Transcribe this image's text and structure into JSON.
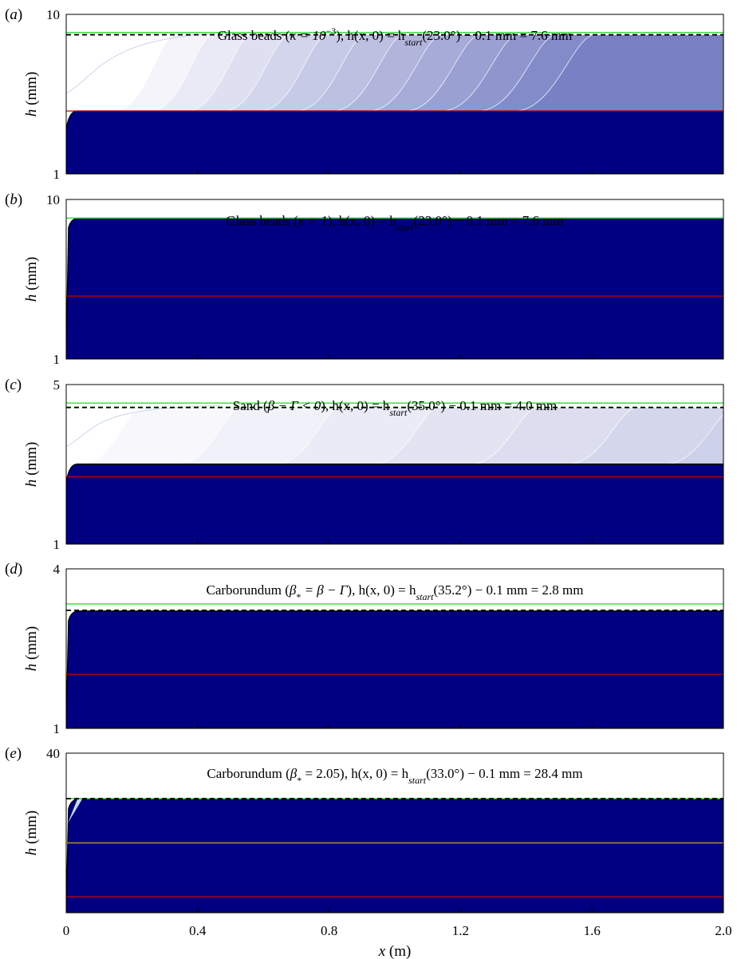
{
  "figure": {
    "xlabel_var": "x",
    "xlabel_unit": "(m)",
    "x_ticks": [
      "0",
      "0.4",
      "0.8",
      "1.2",
      "1.6",
      "2.0"
    ]
  },
  "chart_data": [
    {
      "type": "area",
      "panel": "(a)",
      "title": {
        "prefix": "Glass beads (",
        "param": "κ = 10",
        "param_sup": "−3",
        "suffix": "), h(x, 0) = h",
        "sub": "start",
        "tail": "(23.0°) − 0.1 mm = 7.6 mm"
      },
      "ylabel_var": "h",
      "ylabel_unit": "(mm)",
      "y_tick_labels": [
        "1",
        "10"
      ],
      "xlim": [
        0,
        2.0
      ],
      "ylim": [
        1,
        10
      ],
      "y_scale": "log",
      "front": "wide",
      "lines": {
        "green_mm": 7.7,
        "dashed_mm": 7.45,
        "red_mm": 2.48,
        "orange_mm": null
      },
      "contour": {
        "n_layers": 12,
        "tint_strength": 0.85,
        "first_front_x": 0.3,
        "front_step": 0.115,
        "final_h_mm": 2.48
      },
      "colors": {
        "fill": "#000080",
        "green": "#33dd33",
        "red": "#cc0000",
        "orange": "#d4a020",
        "dashed": "#000000"
      }
    },
    {
      "type": "area",
      "panel": "(b)",
      "title": {
        "prefix": "Glass beads (",
        "param": "κ = 1",
        "param_sup": "",
        "suffix": "), h(x, 0) = h",
        "sub": "start",
        "tail": "(23.0°) − 0.1 mm = 7.6 mm"
      },
      "ylabel_var": "h",
      "ylabel_unit": "(mm)",
      "y_tick_labels": [
        "1",
        "10"
      ],
      "xlim": [
        0,
        2.0
      ],
      "ylim": [
        1,
        10
      ],
      "y_scale": "log",
      "front": "steep",
      "lines": {
        "green_mm": 7.65,
        "dashed_mm": null,
        "red_mm": 2.48,
        "orange_mm": null
      },
      "contour": null,
      "colors": {
        "fill": "#000080",
        "green": "#33dd33",
        "red": "#cc0000",
        "orange": "#d4a020",
        "dashed": "#000000"
      }
    },
    {
      "type": "area",
      "panel": "(c)",
      "title": {
        "prefix": "Sand (",
        "param": "β − Γ < 0",
        "param_sup": "",
        "suffix": "), h(x, 0) = h",
        "sub": "start",
        "tail": "(35.0°) − 0.1 mm = 4.0 mm"
      },
      "ylabel_var": "h",
      "ylabel_unit": "(mm)",
      "y_tick_labels": [
        "1",
        "5"
      ],
      "xlim": [
        0,
        2.0
      ],
      "ylim": [
        1,
        5
      ],
      "y_scale": "log",
      "front": "wide",
      "lines": {
        "green_mm": 4.15,
        "dashed_mm": 3.97,
        "red_mm": 1.97,
        "orange_mm": null
      },
      "contour": {
        "n_layers": 10,
        "tint_strength": 0.45,
        "first_front_x": 0.2,
        "front_step": 0.3,
        "final_h_mm": 2.24
      },
      "colors": {
        "fill": "#000080",
        "green": "#33dd33",
        "red": "#cc0000",
        "orange": "#d4a020",
        "dashed": "#000000"
      }
    },
    {
      "type": "area",
      "panel": "(d)",
      "title": {
        "prefix": "Carborundum (",
        "param": "β",
        "param_sub": "*",
        "param_after": " = β − Γ",
        "suffix": "), h(x, 0) = h",
        "sub": "start",
        "tail": "(35.2°) − 0.1 mm = 2.8 mm"
      },
      "ylabel_var": "h",
      "ylabel_unit": "(mm)",
      "y_tick_labels": [
        "1",
        "4"
      ],
      "xlim": [
        0,
        2.0
      ],
      "ylim": [
        1,
        4
      ],
      "y_scale": "log",
      "front": "steep",
      "lines": {
        "green_mm": 2.95,
        "dashed_mm": 2.79,
        "red_mm": 1.6,
        "orange_mm": null
      },
      "contour": null,
      "colors": {
        "fill": "#000080",
        "green": "#33dd33",
        "red": "#cc0000",
        "orange": "#d4a020",
        "dashed": "#000000"
      }
    },
    {
      "type": "area",
      "panel": "(e)",
      "title": {
        "prefix": "Carborundum (",
        "param": "β",
        "param_sub": "*",
        "param_after": " = 2.05",
        "suffix": "), h(x, 0) = h",
        "sub": "start",
        "tail": "(33.0°) − 0.1 mm = 28.4 mm"
      },
      "ylabel_var": "h",
      "ylabel_unit": "(mm)",
      "y_tick_labels": [
        "40"
      ],
      "xlim": [
        0,
        2.0
      ],
      "ylim": [
        0,
        40
      ],
      "y_scale": "linear",
      "front": "steep",
      "lines": {
        "green_mm": 28.6,
        "dashed_mm": 28.6,
        "red_mm": 4.0,
        "orange_mm": 17.5
      },
      "contour": null,
      "colors": {
        "fill": "#000080",
        "green": "#33dd33",
        "red": "#cc0000",
        "orange": "#d4a020",
        "dashed": "#000000"
      }
    }
  ]
}
